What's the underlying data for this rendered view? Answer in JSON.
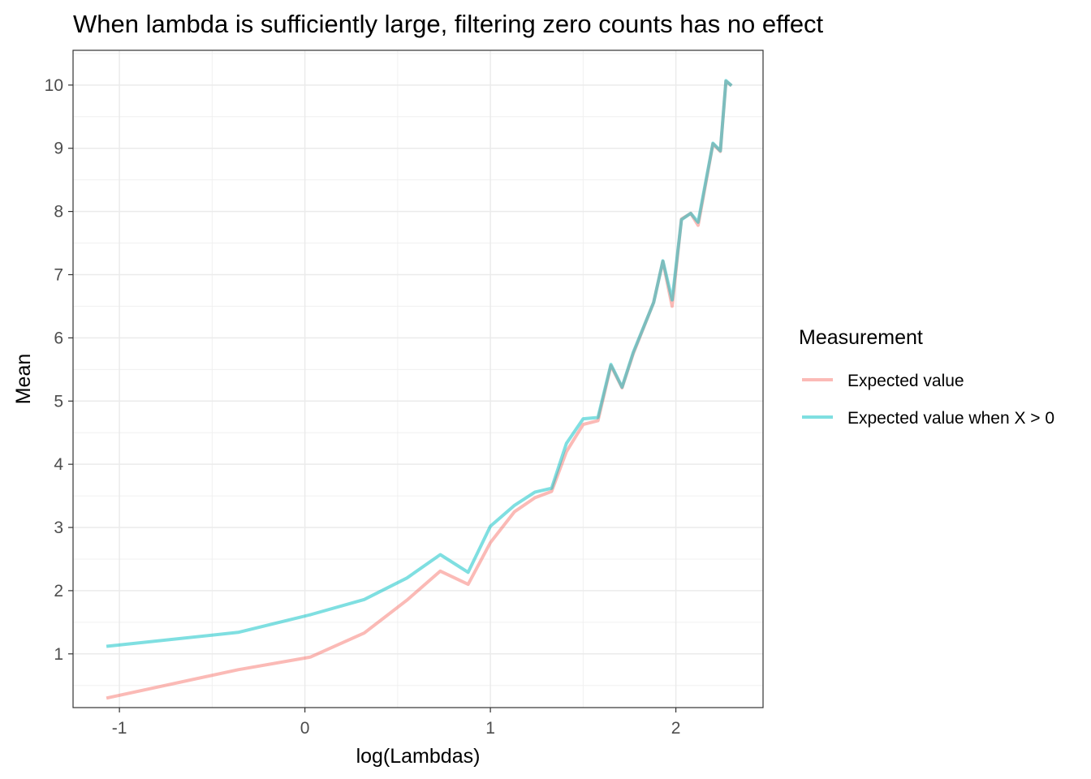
{
  "chart_data": {
    "type": "line",
    "title": "When lambda is sufficiently large, filtering zero counts has no effect",
    "xlabel": "log(Lambdas)",
    "ylabel": "Mean",
    "xlim": [
      -1.25,
      2.47
    ],
    "ylim": [
      0.15,
      10.55
    ],
    "x_ticks": [
      -1,
      0,
      1,
      2
    ],
    "x_tick_labels": [
      "-1",
      "0",
      "1",
      "2"
    ],
    "y_ticks": [
      1,
      2,
      3,
      4,
      5,
      6,
      7,
      8,
      9,
      10
    ],
    "y_tick_labels": [
      "1",
      "2",
      "3",
      "4",
      "5",
      "6",
      "7",
      "8",
      "9",
      "10"
    ],
    "grid": true,
    "legend": {
      "title": "Measurement",
      "position": "right"
    },
    "series": [
      {
        "name": "Expected value",
        "color": "#F8766D",
        "x": [
          -1.07,
          -0.36,
          0.03,
          0.32,
          0.55,
          0.73,
          0.88,
          1.0,
          1.13,
          1.24,
          1.33,
          1.41,
          1.5,
          1.58,
          1.65,
          1.71,
          1.77,
          1.88,
          1.93,
          1.98,
          2.03,
          2.08,
          2.12,
          2.2,
          2.24,
          2.27,
          2.3
        ],
        "y": [
          0.3,
          0.75,
          0.95,
          1.33,
          1.85,
          2.31,
          2.1,
          2.76,
          3.25,
          3.47,
          3.57,
          4.2,
          4.63,
          4.69,
          5.56,
          5.21,
          5.75,
          6.56,
          7.21,
          6.5,
          7.88,
          7.97,
          7.78,
          9.07,
          8.95,
          10.06,
          9.99
        ]
      },
      {
        "name": "Expected value when X > 0",
        "color": "#00BFC4",
        "x": [
          -1.07,
          -0.36,
          0.03,
          0.32,
          0.55,
          0.73,
          0.88,
          1.0,
          1.13,
          1.24,
          1.33,
          1.41,
          1.5,
          1.58,
          1.65,
          1.71,
          1.77,
          1.88,
          1.93,
          1.98,
          2.03,
          2.08,
          2.12,
          2.2,
          2.24,
          2.27,
          2.3
        ],
        "y": [
          1.12,
          1.34,
          1.62,
          1.86,
          2.2,
          2.57,
          2.29,
          3.02,
          3.35,
          3.56,
          3.62,
          4.33,
          4.72,
          4.74,
          5.58,
          5.22,
          5.77,
          6.56,
          7.22,
          6.6,
          7.87,
          7.97,
          7.83,
          9.08,
          8.96,
          10.07,
          9.99
        ]
      }
    ]
  }
}
